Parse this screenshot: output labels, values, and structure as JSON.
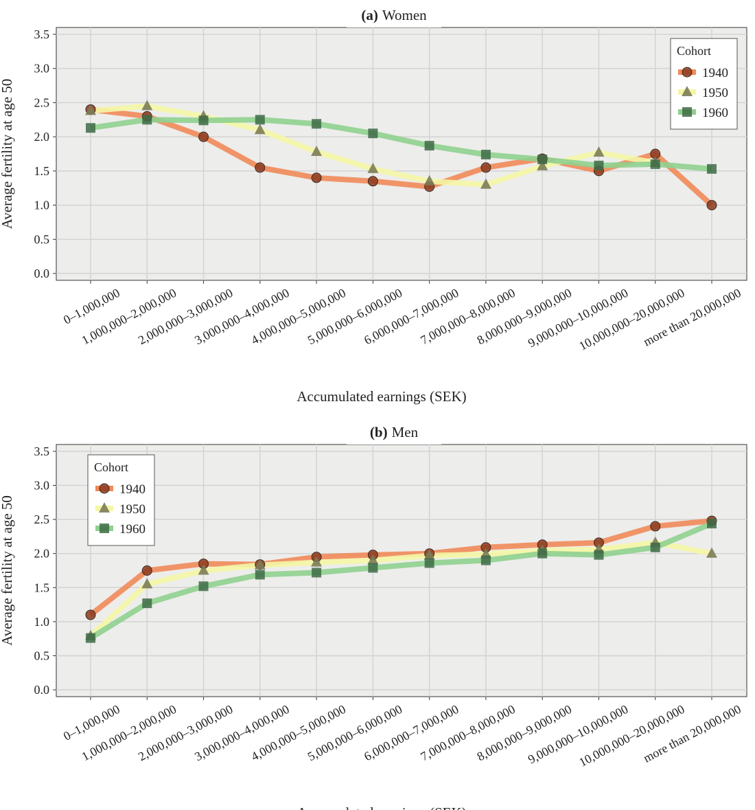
{
  "colors": {
    "s1940_line": "#f08a5a",
    "s1940_marker": "#8b3a1e",
    "s1950_line": "#f4f6a6",
    "s1950_marker": "#7c7c58",
    "s1960_line": "#8fd08f",
    "s1960_marker": "#3e6b47",
    "panel_bg": "#ededeb",
    "grid": "#d3d3d3"
  },
  "chart_data": [
    {
      "type": "line",
      "panel_label": "(a)",
      "title": "Women",
      "xlabel": "Accumulated earnings (SEK)",
      "ylabel": "Average fertility at age 50",
      "ylim": [
        -0.1,
        3.6
      ],
      "yticks": [
        "0.0",
        "0.5",
        "1.0",
        "1.5",
        "2.0",
        "2.5",
        "3.0",
        "3.5"
      ],
      "grid": true,
      "legend": {
        "title": "Cohort",
        "placement": "top-right"
      },
      "categories": [
        "0–1,000,000",
        "1,000,000–2,000,000",
        "2,000,000–3,000,000",
        "3,000,000–4,000,000",
        "4,000,000–5,000,000",
        "5,000,000–6,000,000",
        "6,000,000–7,000,000",
        "7,000,000–8,000,000",
        "8,000,000–9,000,000",
        "9,000,000–10,000,000",
        "10,000,000–20,000,000",
        "more than 20,000,000"
      ],
      "series": [
        {
          "name": "1940",
          "marker": "circle",
          "values": [
            2.4,
            2.3,
            2.0,
            1.55,
            1.4,
            1.35,
            1.27,
            1.55,
            1.68,
            1.5,
            1.75,
            1.0
          ]
        },
        {
          "name": "1950",
          "marker": "triangle",
          "values": [
            2.38,
            2.45,
            2.3,
            2.1,
            1.78,
            1.53,
            1.35,
            1.3,
            1.57,
            1.77,
            1.62,
            null
          ]
        },
        {
          "name": "1960",
          "marker": "square",
          "values": [
            2.13,
            2.25,
            2.24,
            2.25,
            2.19,
            2.05,
            1.87,
            1.74,
            1.67,
            1.58,
            1.6,
            1.53
          ]
        }
      ]
    },
    {
      "type": "line",
      "panel_label": "(b)",
      "title": "Men",
      "xlabel": "Accumulated earnings (SEK)",
      "ylabel": "Average fertility at age 50",
      "ylim": [
        -0.1,
        3.6
      ],
      "yticks": [
        "0.0",
        "0.5",
        "1.0",
        "1.5",
        "2.0",
        "2.5",
        "3.0",
        "3.5"
      ],
      "grid": true,
      "legend": {
        "title": "Cohort",
        "placement": "top-left"
      },
      "categories": [
        "0–1,000,000",
        "1,000,000–2,000,000",
        "2,000,000–3,000,000",
        "3,000,000–4,000,000",
        "4,000,000–5,000,000",
        "5,000,000–6,000,000",
        "6,000,000–7,000,000",
        "7,000,000–8,000,000",
        "8,000,000–9,000,000",
        "9,000,000–10,000,000",
        "10,000,000–20,000,000",
        "more than 20,000,000"
      ],
      "series": [
        {
          "name": "1940",
          "marker": "circle",
          "values": [
            1.1,
            1.75,
            1.85,
            1.84,
            1.95,
            1.98,
            2.0,
            2.09,
            2.13,
            2.16,
            2.4,
            2.48
          ]
        },
        {
          "name": "1950",
          "marker": "triangle",
          "values": [
            0.79,
            1.55,
            1.75,
            1.83,
            1.87,
            1.9,
            1.97,
            1.99,
            2.04,
            2.06,
            2.16,
            2.0
          ]
        },
        {
          "name": "1960",
          "marker": "square",
          "values": [
            0.76,
            1.27,
            1.52,
            1.69,
            1.72,
            1.79,
            1.86,
            1.9,
            2.0,
            1.98,
            2.09,
            2.44
          ]
        }
      ]
    }
  ]
}
